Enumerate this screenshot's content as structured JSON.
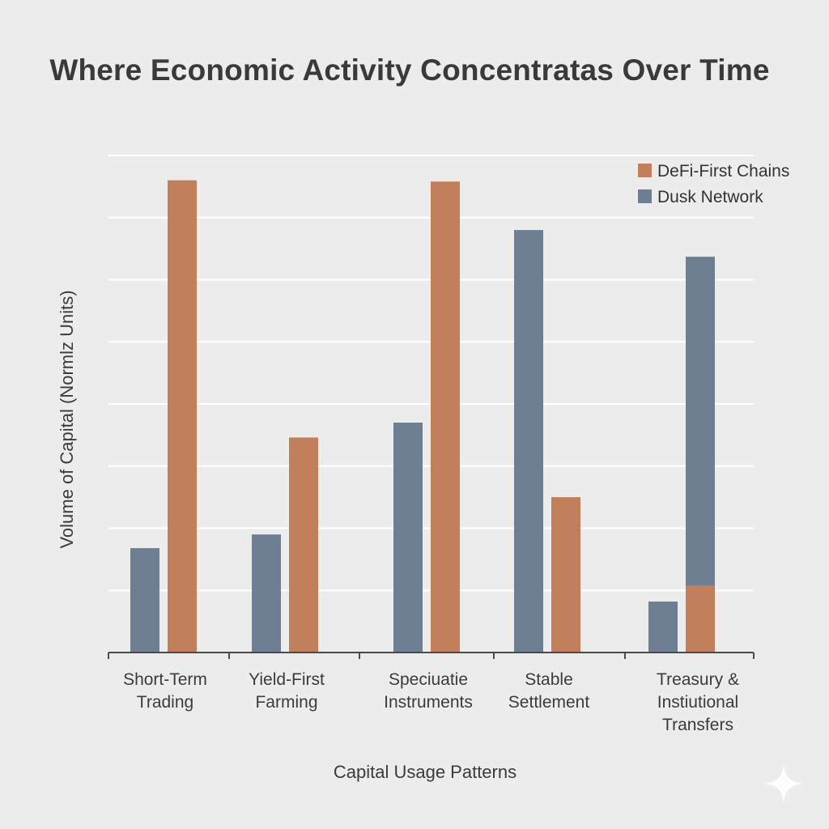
{
  "chart_data": {
    "type": "bar",
    "title": "Where Economic Activity Concentratas Over Time",
    "xlabel": "Capital Usage Patterns",
    "ylabel": "Volume of Capital (Normlz Units)",
    "ylim": [
      0,
      8
    ],
    "grid": true,
    "legend_position": "top-right",
    "categories": [
      [
        "Short-Term",
        "Trading"
      ],
      [
        "Yield-First",
        "Farming"
      ],
      [
        "Speciuatie",
        "Instruments"
      ],
      [
        "Stable",
        "Settlement"
      ],
      [
        "Treasury &",
        "Instiutional",
        "Transfers"
      ]
    ],
    "series": [
      {
        "name": "Dusk Network",
        "color": "#6f7f93",
        "values": [
          1.68,
          1.9,
          3.7,
          6.8,
          0.82
        ]
      },
      {
        "name": "DeFi-First Chains",
        "color": "#c27f5b",
        "values": [
          7.6,
          3.46,
          7.58,
          2.5,
          1.07
        ]
      }
    ],
    "stacked_segment": {
      "category_index": 4,
      "series": "Dusk Network",
      "base": 1.07,
      "value": 5.3
    }
  }
}
